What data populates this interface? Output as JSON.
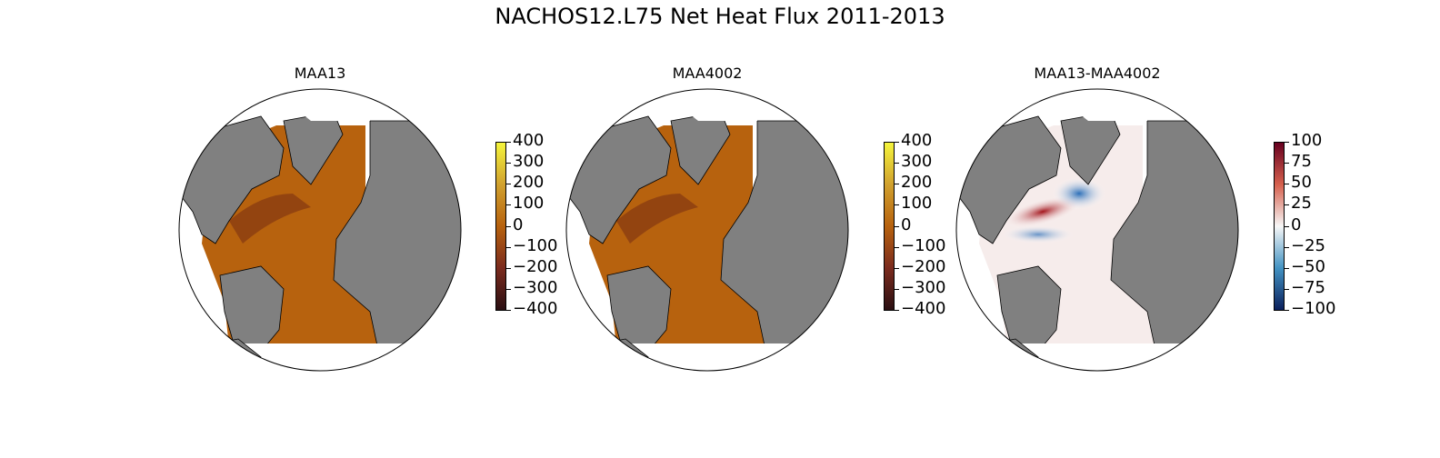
{
  "figure": {
    "title": "NACHOS12.L75 Net Heat Flux 2011-2013"
  },
  "colors": {
    "land": "#808080",
    "ocean_heat": "#b7620e",
    "ocean_heat_dark": "#8a3d12",
    "no_data": "#ffffff",
    "coast": "#000000"
  },
  "panels": [
    {
      "title": "MAA13",
      "colormap": "heat (dark red → orange → yellow)",
      "colorbar_ticks": [
        "400",
        "300",
        "200",
        "100",
        "0",
        "−100",
        "−200",
        "−300",
        "−400"
      ]
    },
    {
      "title": "MAA4002",
      "colormap": "heat (dark red → orange → yellow)",
      "colorbar_ticks": [
        "400",
        "300",
        "200",
        "100",
        "0",
        "−100",
        "−200",
        "−300",
        "−400"
      ]
    },
    {
      "title": "MAA13-MAA4002",
      "colormap": "diverging (blue → white → red)",
      "colorbar_ticks": [
        "100",
        "75",
        "50",
        "25",
        "0",
        "−25",
        "−50",
        "−75",
        "−100"
      ]
    }
  ]
}
